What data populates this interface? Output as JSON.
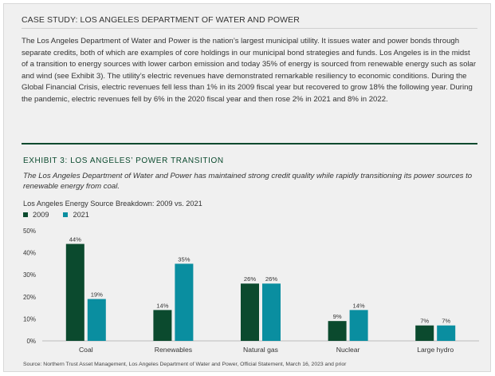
{
  "case_study": {
    "title": "CASE STUDY: LOS ANGELES DEPARTMENT OF WATER AND POWER",
    "body": "The Los Angeles Department of Water and Power is the nation’s largest municipal utility. It issues water and power bonds through separate credits, both of which are examples of core holdings in our municipal bond strategies and funds. Los Angeles is in the midst of a transition to energy sources with lower carbon emission and today 35% of energy is sourced from renewable energy such as solar and wind (see Exhibit 3). The utility’s electric revenues have demonstrated remarkable resiliency to economic conditions. During the Global Financial Crisis, electric revenues fell less than 1% in its 2009 fiscal year but recovered to grow 18% the following year. During the pandemic, electric revenues fell by 6% in the 2020 fiscal year and then rose 2% in 2021 and 8% in 2022."
  },
  "exhibit": {
    "title": "EXHIBIT 3: LOS ANGELES’ POWER TRANSITION",
    "subtitle": "The Los Angeles Department of Water and Power has maintained strong credit quality while rapidly transitioning its power sources to renewable energy from coal."
  },
  "chart_data": {
    "type": "bar",
    "title": "Los Angeles Energy Source Breakdown: 2009 vs. 2021",
    "categories": [
      "Coal",
      "Renewables",
      "Natural gas",
      "Nuclear",
      "Large hydro"
    ],
    "series": [
      {
        "name": "2009",
        "values": [
          44,
          14,
          26,
          9,
          7
        ],
        "color": "#0b4a2e",
        "labels": [
          "44%",
          "14%",
          "26%",
          "9%",
          "7%"
        ]
      },
      {
        "name": "2021",
        "values": [
          19,
          35,
          26,
          14,
          7
        ],
        "color": "#0a8ea0",
        "labels": [
          "19%",
          "35%",
          "26%",
          "14%",
          "7%"
        ]
      }
    ],
    "yticks": [
      "0%",
      "10%",
      "20%",
      "30%",
      "40%",
      "50%"
    ],
    "ylim": [
      0,
      50
    ],
    "legend_position": "top-left",
    "grid": false
  },
  "source": "Source: Northern Trust Asset Management, Los Angeles Department of Water and Power, Official Statement, March 16, 2023 and prior"
}
